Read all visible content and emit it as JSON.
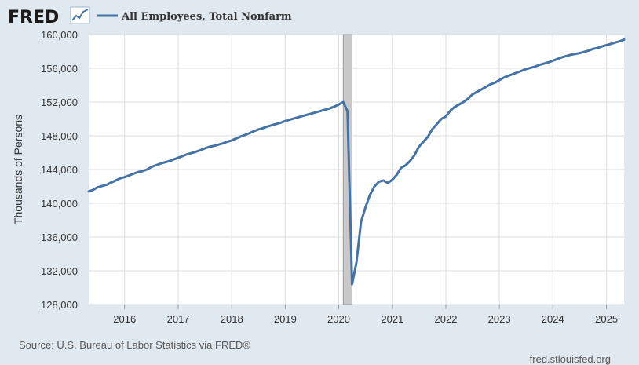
{
  "header": {
    "logo_text": "FRED",
    "logo_icon": "line-chart-icon",
    "legend_label": "All Employees, Total Nonfarm"
  },
  "footer": {
    "source": "Source: U.S. Bureau of Labor Statistics via FRED®",
    "site": "fred.stlouisfed.org"
  },
  "colors": {
    "series": "#4572a7",
    "background": "#e1e9f0",
    "plot": "#ffffff",
    "grid": "#dddddd",
    "recession": "#c8c8c8"
  },
  "chart_data": {
    "type": "line",
    "title": "",
    "xlabel": "",
    "ylabel": "Thousands of Persons",
    "xlim": [
      "2015-05-01",
      "2025-05-01"
    ],
    "ylim": [
      128000,
      160000
    ],
    "y_ticks": [
      128000,
      132000,
      136000,
      140000,
      144000,
      148000,
      152000,
      156000,
      160000
    ],
    "y_tick_labels": [
      "128,000",
      "132,000",
      "136,000",
      "140,000",
      "144,000",
      "148,000",
      "152,000",
      "156,000",
      "160,000"
    ],
    "x_ticks": [
      "2016-01-01",
      "2017-01-01",
      "2018-01-01",
      "2019-01-01",
      "2020-01-01",
      "2021-01-01",
      "2022-01-01",
      "2023-01-01",
      "2024-01-01",
      "2025-01-01"
    ],
    "x_tick_labels": [
      "2016",
      "2017",
      "2018",
      "2019",
      "2020",
      "2021",
      "2022",
      "2023",
      "2024",
      "2025"
    ],
    "grid": true,
    "legend_position": "top",
    "shaded_periods": [
      {
        "start": "2020-02-01",
        "end": "2020-04-01"
      }
    ],
    "series": [
      {
        "name": "All Employees, Total Nonfarm",
        "x": [
          "2015-05-01",
          "2015-06-01",
          "2015-07-01",
          "2015-08-01",
          "2015-09-01",
          "2015-10-01",
          "2015-11-01",
          "2015-12-01",
          "2016-01-01",
          "2016-02-01",
          "2016-03-01",
          "2016-04-01",
          "2016-05-01",
          "2016-06-01",
          "2016-07-01",
          "2016-08-01",
          "2016-09-01",
          "2016-10-01",
          "2016-11-01",
          "2016-12-01",
          "2017-01-01",
          "2017-02-01",
          "2017-03-01",
          "2017-04-01",
          "2017-05-01",
          "2017-06-01",
          "2017-07-01",
          "2017-08-01",
          "2017-09-01",
          "2017-10-01",
          "2017-11-01",
          "2017-12-01",
          "2018-01-01",
          "2018-02-01",
          "2018-03-01",
          "2018-04-01",
          "2018-05-01",
          "2018-06-01",
          "2018-07-01",
          "2018-08-01",
          "2018-09-01",
          "2018-10-01",
          "2018-11-01",
          "2018-12-01",
          "2019-01-01",
          "2019-02-01",
          "2019-03-01",
          "2019-04-01",
          "2019-05-01",
          "2019-06-01",
          "2019-07-01",
          "2019-08-01",
          "2019-09-01",
          "2019-10-01",
          "2019-11-01",
          "2019-12-01",
          "2020-01-01",
          "2020-02-01",
          "2020-03-01",
          "2020-04-01",
          "2020-05-01",
          "2020-06-01",
          "2020-07-01",
          "2020-08-01",
          "2020-09-01",
          "2020-10-01",
          "2020-11-01",
          "2020-12-01",
          "2021-01-01",
          "2021-02-01",
          "2021-03-01",
          "2021-04-01",
          "2021-05-01",
          "2021-06-01",
          "2021-07-01",
          "2021-08-01",
          "2021-09-01",
          "2021-10-01",
          "2021-11-01",
          "2021-12-01",
          "2022-01-01",
          "2022-02-01",
          "2022-03-01",
          "2022-04-01",
          "2022-05-01",
          "2022-06-01",
          "2022-07-01",
          "2022-08-01",
          "2022-09-01",
          "2022-10-01",
          "2022-11-01",
          "2022-12-01",
          "2023-01-01",
          "2023-02-01",
          "2023-03-01",
          "2023-04-01",
          "2023-05-01",
          "2023-06-01",
          "2023-07-01",
          "2023-08-01",
          "2023-09-01",
          "2023-10-01",
          "2023-11-01",
          "2023-12-01",
          "2024-01-01",
          "2024-02-01",
          "2024-03-01",
          "2024-04-01",
          "2024-05-01",
          "2024-06-01",
          "2024-07-01",
          "2024-08-01",
          "2024-09-01",
          "2024-10-01",
          "2024-11-01",
          "2024-12-01",
          "2025-01-01",
          "2025-02-01",
          "2025-03-01",
          "2025-04-01",
          "2025-05-01"
        ],
        "values": [
          141400,
          141600,
          141900,
          142050,
          142200,
          142450,
          142700,
          142950,
          143100,
          143300,
          143500,
          143700,
          143800,
          144000,
          144300,
          144500,
          144700,
          144850,
          145000,
          145200,
          145400,
          145600,
          145800,
          145950,
          146100,
          146300,
          146500,
          146700,
          146800,
          146950,
          147100,
          147300,
          147450,
          147700,
          147900,
          148100,
          148300,
          148550,
          148750,
          148900,
          149100,
          149250,
          149400,
          149550,
          149750,
          149900,
          150050,
          150200,
          150350,
          150500,
          150650,
          150800,
          150950,
          151100,
          151250,
          151450,
          151700,
          152000,
          150900,
          130400,
          133000,
          137800,
          139500,
          141000,
          142000,
          142550,
          142700,
          142400,
          142800,
          143400,
          144200,
          144500,
          145000,
          145700,
          146700,
          147300,
          147900,
          148800,
          149400,
          150000,
          150300,
          151000,
          151400,
          151700,
          152000,
          152400,
          152900,
          153200,
          153500,
          153800,
          154100,
          154300,
          154600,
          154900,
          155100,
          155300,
          155500,
          155700,
          155900,
          156050,
          156200,
          156400,
          156550,
          156700,
          156900,
          157100,
          157300,
          157450,
          157600,
          157700,
          157800,
          157950,
          158100,
          158300,
          158400,
          158600,
          158750,
          158900,
          159050,
          159200,
          159400
        ]
      }
    ]
  }
}
